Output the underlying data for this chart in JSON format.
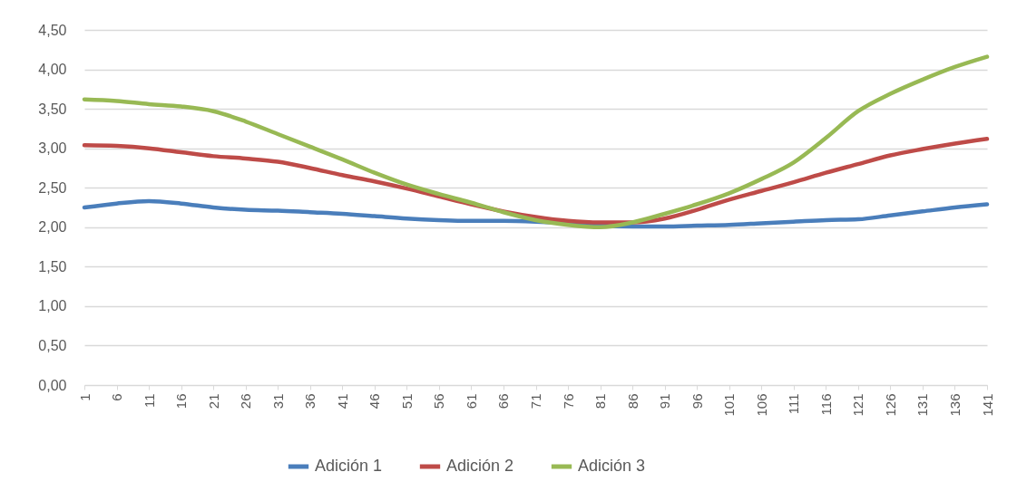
{
  "chart_data": {
    "type": "line",
    "x": [
      1,
      6,
      11,
      16,
      21,
      26,
      31,
      36,
      41,
      46,
      51,
      56,
      61,
      66,
      71,
      76,
      81,
      86,
      91,
      96,
      101,
      106,
      111,
      116,
      121,
      126,
      131,
      136,
      141
    ],
    "series": [
      {
        "name": "Adición 1",
        "color": "#4a7ebb",
        "values": [
          2.25,
          2.3,
          2.33,
          2.3,
          2.25,
          2.22,
          2.21,
          2.19,
          2.17,
          2.14,
          2.11,
          2.09,
          2.08,
          2.08,
          2.07,
          2.05,
          2.02,
          2.01,
          2.01,
          2.02,
          2.03,
          2.05,
          2.07,
          2.09,
          2.1,
          2.15,
          2.2,
          2.25,
          2.29
        ]
      },
      {
        "name": "Adición 2",
        "color": "#be4b48",
        "values": [
          3.04,
          3.03,
          3.0,
          2.95,
          2.9,
          2.87,
          2.83,
          2.75,
          2.66,
          2.58,
          2.49,
          2.39,
          2.29,
          2.2,
          2.13,
          2.08,
          2.06,
          2.06,
          2.11,
          2.22,
          2.35,
          2.46,
          2.57,
          2.69,
          2.8,
          2.91,
          2.99,
          3.06,
          3.12
        ]
      },
      {
        "name": "Adición 3",
        "color": "#98b954",
        "values": [
          3.62,
          3.6,
          3.56,
          3.53,
          3.47,
          3.34,
          3.18,
          3.02,
          2.86,
          2.69,
          2.54,
          2.42,
          2.31,
          2.19,
          2.09,
          2.03,
          2.0,
          2.06,
          2.17,
          2.29,
          2.43,
          2.61,
          2.82,
          3.13,
          3.47,
          3.69,
          3.87,
          4.03,
          4.16
        ]
      }
    ],
    "xlim": [
      1,
      141
    ],
    "xticks": [
      1,
      6,
      11,
      16,
      21,
      26,
      31,
      36,
      41,
      46,
      51,
      56,
      61,
      66,
      71,
      76,
      81,
      86,
      91,
      96,
      101,
      106,
      111,
      116,
      121,
      126,
      131,
      136,
      141
    ],
    "ylim": [
      0,
      4.5
    ],
    "yticks": [
      {
        "value": 0,
        "label": "0,00"
      },
      {
        "value": 0.5,
        "label": "0,50"
      },
      {
        "value": 1,
        "label": "1,00"
      },
      {
        "value": 1.5,
        "label": "1,50"
      },
      {
        "value": 2,
        "label": "2,00"
      },
      {
        "value": 2.5,
        "label": "2,50"
      },
      {
        "value": 3,
        "label": "3,00"
      },
      {
        "value": 3.5,
        "label": "3,50"
      },
      {
        "value": 4,
        "label": "4,00"
      },
      {
        "value": 4.5,
        "label": "4,50"
      }
    ],
    "grid": "y",
    "legend": "bottom",
    "line_style": "solid",
    "marker": "none"
  }
}
